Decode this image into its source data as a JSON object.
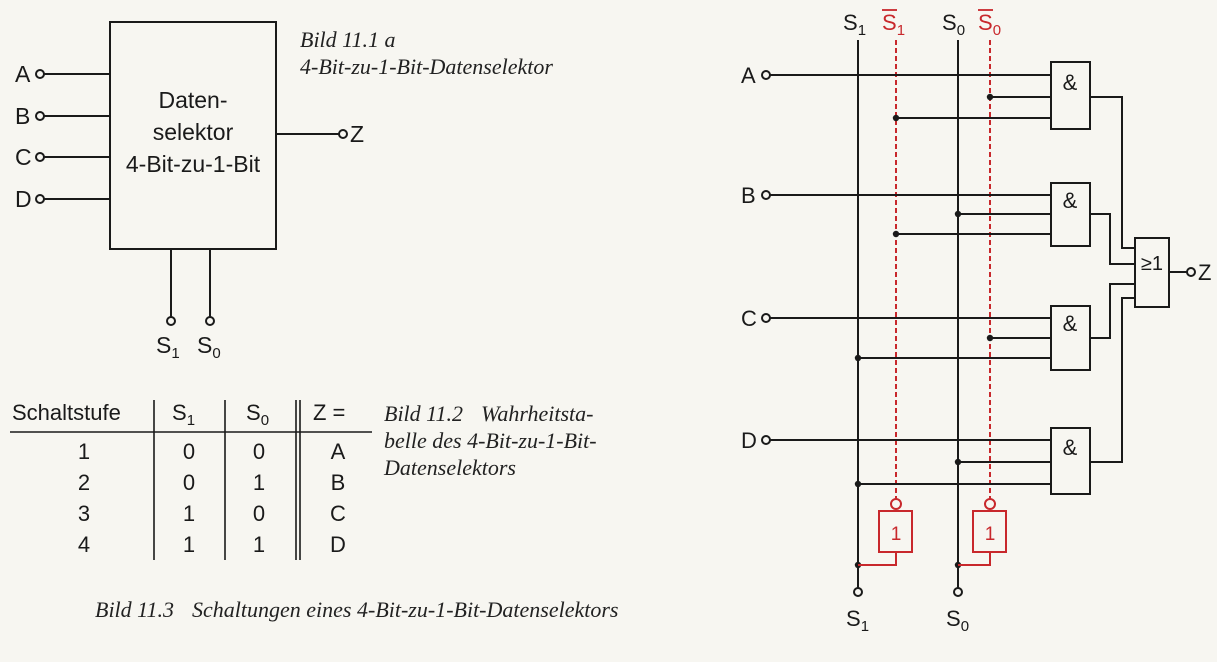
{
  "fig_a": {
    "caption_num": "Bild 11.1 a",
    "caption_text": "4-Bit-zu-1-Bit-Datenselektor",
    "box_line1": "Daten-",
    "box_line2": "selektor",
    "box_line3": "4-Bit-zu-1-Bit",
    "inputs": [
      "A",
      "B",
      "C",
      "D"
    ],
    "output": "Z",
    "select_base": "S",
    "select_subs": [
      "1",
      "0"
    ]
  },
  "truth_table": {
    "headers": [
      "Schaltstufe",
      "S",
      "S",
      "Z ="
    ],
    "header_subs": [
      "",
      "1",
      "0",
      ""
    ],
    "rows": [
      [
        "1",
        "0",
        "0",
        "A"
      ],
      [
        "2",
        "0",
        "1",
        "B"
      ],
      [
        "3",
        "1",
        "0",
        "C"
      ],
      [
        "4",
        "1",
        "1",
        "D"
      ]
    ],
    "caption_num": "Bild 11.2",
    "caption_lines": [
      "Wahrheitsta-",
      "belle des 4-Bit-zu-1-Bit-",
      "Datenselektors"
    ]
  },
  "fig_b": {
    "caption_num": "Bild 11.3",
    "caption_text": "Schaltungen eines  4-Bit-zu-1-Bit-Datenselektors",
    "top_labels": [
      {
        "base": "S",
        "sub": "1",
        "overline": false,
        "color": "#1a1a1a"
      },
      {
        "base": "S",
        "sub": "1",
        "overline": true,
        "color": "#c8282c"
      },
      {
        "base": "S",
        "sub": "0",
        "overline": false,
        "color": "#1a1a1a"
      },
      {
        "base": "S",
        "sub": "0",
        "overline": true,
        "color": "#c8282c"
      }
    ],
    "bottom_labels": [
      {
        "base": "S",
        "sub": "1"
      },
      {
        "base": "S",
        "sub": "0"
      }
    ],
    "inputs": [
      "A",
      "B",
      "C",
      "D"
    ],
    "and_label": "&",
    "or_label": "≥1",
    "not_label": "1",
    "output": "Z",
    "colors": {
      "ink": "#1a1a1a",
      "inverted": "#c8282c"
    }
  }
}
